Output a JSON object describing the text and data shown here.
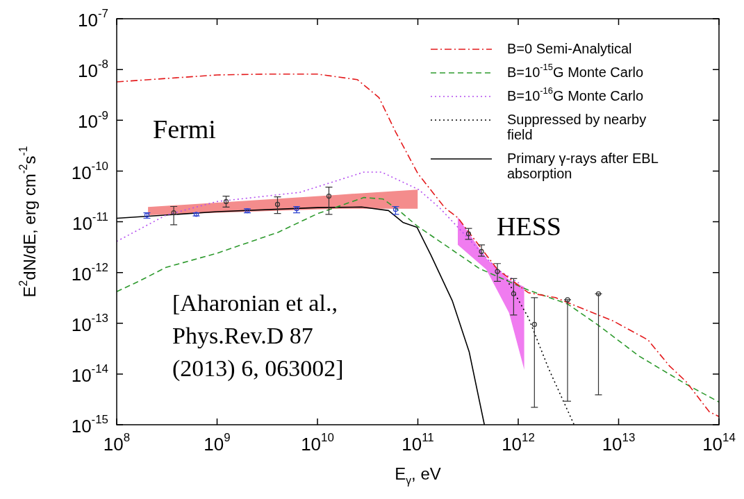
{
  "chart_data": {
    "type": "line",
    "xlabel": "E$_{γ}$, eV",
    "ylabel": "E$^{2}$dN/dE, erg cm$^{-2}$s$^{-1}$",
    "log": "xy",
    "xlim": [
      100000000.0,
      100000000000000.0
    ],
    "xticks": [
      {
        "value": 100000000.0,
        "label": "10$^{8}$"
      },
      {
        "value": 1000000000.0,
        "label": "10$^{9}$"
      },
      {
        "value": 10000000000.0,
        "label": "10$^{10}$"
      },
      {
        "value": 100000000000.0,
        "label": "10$^{11}$"
      },
      {
        "value": 1000000000000.0,
        "label": "10$^{12}$"
      },
      {
        "value": 10000000000000.0,
        "label": "10$^{13}$"
      },
      {
        "value": 100000000000000.0,
        "label": "10$^{14}$"
      }
    ],
    "ylim": [
      1e-15,
      1e-07
    ],
    "yticks": [
      {
        "value": 1e-15,
        "label": "10$^{-15}$"
      },
      {
        "value": 1e-14,
        "label": "10$^{-14}$"
      },
      {
        "value": 1e-13,
        "label": "10$^{-13}$"
      },
      {
        "value": 1e-12,
        "label": "10$^{-12}$"
      },
      {
        "value": 1e-11,
        "label": "10$^{-11}$"
      },
      {
        "value": 1e-10,
        "label": "10$^{-10}$"
      },
      {
        "value": 1e-09,
        "label": "10$^{-9}$"
      },
      {
        "value": 1e-08,
        "label": "10$^{-8}$"
      },
      {
        "value": 1e-07,
        "label": "10$^{-7}$"
      }
    ],
    "grid": false,
    "legend": "top right",
    "annotations": [
      "Fermi",
      "HESS",
      "[Aharonian et al., Phys.Rev.D 87 (2013) 6, 063002]"
    ],
    "series": [
      {
        "type": "area",
        "color": "#f48c8c",
        "x": [
          205000000.0,
          16000000000.0,
          100000000000.0
        ],
        "values": [
          null,
          null,
          null
        ],
        "lower": [
          1.35e-11,
          1.8e-11,
          1.8e-11
        ],
        "upper": [
          1.95e-11,
          3.4e-11,
          4.3e-11
        ]
      },
      {
        "type": "area",
        "color": "#f07cf0",
        "x": [
          250000000000.0,
          480000000000.0,
          810000000000.0,
          1150000000000.0
        ],
        "values": [
          null,
          null,
          null,
          null
        ],
        "lower": [
          3.5e-12,
          1.15e-12,
          1.6e-13,
          1.2e-14
        ],
        "upper": [
          1.23e-11,
          1.9e-12,
          7.2e-13,
          5.2e-13
        ]
      },
      {
        "name": "B=0 Semi-Analytical",
        "line_style": "dashdot",
        "color": "#e41a1c",
        "x": [
          100000000.0,
          1000000000.0,
          2900000000.0,
          10000000000.0,
          25000000000.0,
          41000000000.0,
          60000000000.0,
          100000000000.0,
          185000000000.0,
          250000000000.0,
          620000000000.0,
          1260000000000.0,
          2350000000000.0,
          8900000000000.0,
          19600000000000.0,
          32000000000000.0,
          47000000000000.0,
          80000000000000.0,
          100000000000000.0
        ],
        "values": [
          5.7e-09,
          7.8e-09,
          8.1e-09,
          8.1e-09,
          6.3e-09,
          2.8e-09,
          5.9e-10,
          8.9e-11,
          1.9e-11,
          1.2e-11,
          1.15e-12,
          4e-13,
          3.2e-13,
          1.1e-13,
          4.7e-14,
          1.45e-14,
          7.1e-15,
          1.8e-15,
          1.45e-15
        ]
      },
      {
        "name": "B=10$^{-15}$G Monte Carlo",
        "line_style": "dashed",
        "color": "#2e9a2e",
        "x": [
          100000000.0,
          166000000.0,
          310000000.0,
          1000000000.0,
          4060000000.0,
          10000000000.0,
          29000000000.0,
          45000000000.0,
          67000000000.0,
          98000000000.0,
          410000000000.0,
          1260000000000.0,
          3100000000000.0,
          6200000000000.0,
          16000000000000.0,
          47000000000000.0,
          100000000000000.0
        ],
        "values": [
          4.2e-13,
          6.7e-13,
          1.26e-12,
          2.4e-12,
          6.2e-12,
          1.44e-11,
          3e-11,
          2.8e-11,
          1.58e-11,
          8.3e-12,
          1.2e-12,
          4.5e-13,
          2.4e-13,
          9.3e-14,
          2.25e-14,
          6.3e-15,
          2.8e-15
        ]
      },
      {
        "name": "B=10$^{-16}$G Monte Carlo",
        "line_style": "dotted",
        "color": "#b44ef0",
        "x": [
          100000000.0,
          310000000.0,
          1000000000.0,
          6700000000.0,
          29000000000.0,
          43500000000.0,
          102000000000.0,
          166000000000.0,
          620000000000.0,
          1070000000000.0
        ],
        "values": [
          4.1e-12,
          1.35e-11,
          2.5e-11,
          3.8e-11,
          9.5e-11,
          9.5e-11,
          4.3e-11,
          1.85e-11,
          1.15e-12,
          5.8e-13
        ]
      },
      {
        "name": "Suppressed by nearby field",
        "line_style": "dotted",
        "color": "#000000",
        "x": [
          770000000000.0,
          1260000000000.0,
          2000000000000.0,
          3600000000000.0
        ],
        "values": [
          7.2e-13,
          1.3e-13,
          1.3e-14,
          1e-15
        ]
      },
      {
        "name": "Primary γ-rays after EBL absorption",
        "line_style": "solid",
        "color": "#000000",
        "x": [
          100000000.0,
          1000000000.0,
          10000000000.0,
          27500000000.0,
          51000000000.0,
          71000000000.0,
          98000000000.0,
          135000000000.0,
          220000000000.0,
          325000000000.0,
          460000000000.0
        ],
        "values": [
          1.17e-11,
          1.58e-11,
          1.9e-11,
          1.95e-11,
          1.66e-11,
          9.7e-12,
          7.8e-12,
          2.2e-12,
          2.8e-13,
          2.7e-14,
          1e-15
        ]
      },
      {
        "type": "scatter",
        "marker": "circle",
        "color": "#2a40d0",
        "x": [
          200000000.0,
          620000000.0,
          2000000000.0,
          6200000000.0,
          60000000000.0
        ],
        "values": [
          1.35e-11,
          1.4e-11,
          1.65e-11,
          1.8e-11,
          1.75e-11
        ],
        "errors": [
          [
            1.17e-11,
            1.5e-11
          ],
          [
            1.3e-11,
            1.5e-11
          ],
          [
            1.5e-11,
            1.8e-11
          ],
          [
            1.5e-11,
            2e-11
          ],
          [
            1.4e-11,
            2e-11
          ]
        ]
      },
      {
        "type": "scatter",
        "marker": "circle",
        "color": "#333333",
        "x": [
          370000000.0,
          1230000000.0,
          4000000000.0,
          13000000000.0,
          320000000000.0,
          430000000000.0,
          620000000000.0,
          900000000000.0,
          1450000000000.0,
          3100000000000.0,
          6300000000000.0
        ],
        "values": [
          1.5e-11,
          2.5e-11,
          2.2e-11,
          3.2e-11,
          5.8e-12,
          2.6e-12,
          1.05e-12,
          3.8e-13,
          9.5e-14,
          2.9e-13,
          3.8e-13
        ],
        "errors": [
          [
            8.7e-12,
            2e-11
          ],
          [
            1.95e-11,
            3.2e-11
          ],
          [
            1.45e-11,
            3.1e-11
          ],
          [
            1.4e-11,
            4.8e-11
          ],
          [
            4.5e-12,
            7.4e-12
          ],
          [
            2.1e-12,
            3.5e-12
          ],
          [
            6.7e-13,
            1.5e-12
          ],
          [
            1.45e-13,
            7.6e-13
          ],
          [
            2.2e-15,
            3.2e-13
          ],
          [
            2.9e-15,
            2.9e-13
          ],
          [
            3.9e-15,
            3.8e-13
          ]
        ]
      }
    ]
  }
}
